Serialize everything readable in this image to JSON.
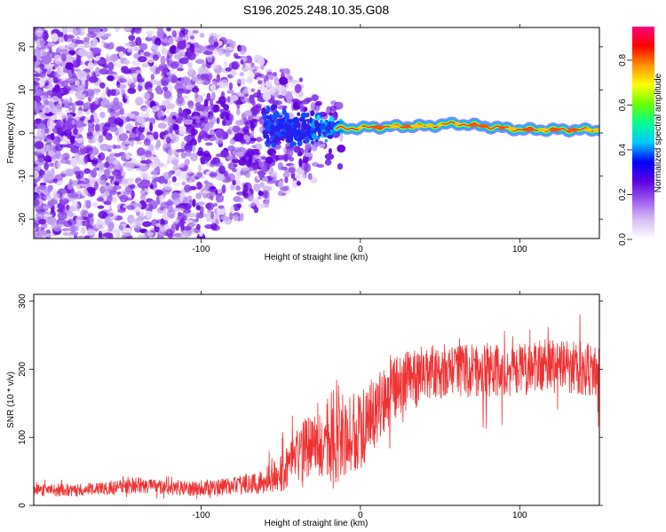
{
  "title": "S196.2025.248.10.35.G08",
  "chart_data": [
    {
      "type": "heatmap",
      "title": "",
      "xlabel": "Height of straight line (km)",
      "ylabel": "Frequency (Hz)",
      "xlim": [
        -205,
        150
      ],
      "ylim": [
        -24.5,
        24.5
      ],
      "xticks": [
        {
          "value": -100,
          "label": "-100"
        },
        {
          "value": 0,
          "label": "0"
        },
        {
          "value": 100,
          "label": "100"
        }
      ],
      "yticks": [
        {
          "value": -20,
          "label": "-20"
        },
        {
          "value": -10,
          "label": "-10"
        },
        {
          "value": 0,
          "label": "0"
        },
        {
          "value": 10,
          "label": "10"
        },
        {
          "value": 20,
          "label": "20"
        }
      ],
      "description_ridge": [
        {
          "x": -15,
          "freq": 1.0,
          "amp": 0.35
        },
        {
          "x": 0,
          "freq": 1.2,
          "amp": 0.7
        },
        {
          "x": 20,
          "freq": 1.5,
          "amp": 0.8
        },
        {
          "x": 40,
          "freq": 1.6,
          "amp": 0.85
        },
        {
          "x": 60,
          "freq": 2.2,
          "amp": 0.9
        },
        {
          "x": 80,
          "freq": 1.5,
          "amp": 0.85
        },
        {
          "x": 100,
          "freq": 0.8,
          "amp": 0.85
        },
        {
          "x": 150,
          "freq": 0.7,
          "amp": 0.9
        }
      ],
      "colorbar": {
        "label": "Normalized spectral amplitude",
        "range": [
          0,
          0.95
        ],
        "ticks": [
          {
            "value": 0.0,
            "label": "0.0"
          },
          {
            "value": 0.2,
            "label": "0.2"
          },
          {
            "value": 0.4,
            "label": "0.4"
          },
          {
            "value": 0.6,
            "label": "0.6"
          },
          {
            "value": 0.8,
            "label": "0.8"
          }
        ],
        "colors": [
          "#ffffff",
          "#d9c0f2",
          "#9f5cf0",
          "#5b00e0",
          "#0000ff",
          "#00c8ff",
          "#00ff90",
          "#6cff00",
          "#ffff00",
          "#ff9000",
          "#ff0000",
          "#ff0080"
        ]
      }
    },
    {
      "type": "line",
      "title": "",
      "xlabel": "Height of straight line (km)",
      "ylabel": "SNR (10 * v/v)",
      "xlim": [
        -205,
        150
      ],
      "ylim": [
        0,
        310
      ],
      "color": "#ee3333",
      "xticks": [
        {
          "value": -100,
          "label": "-100"
        },
        {
          "value": 0,
          "label": "0"
        },
        {
          "value": 100,
          "label": "100"
        }
      ],
      "yticks": [
        {
          "value": 0,
          "label": "0"
        },
        {
          "value": 100,
          "label": "100"
        },
        {
          "value": 200,
          "label": "200"
        },
        {
          "value": 300,
          "label": "300"
        }
      ],
      "series": [
        {
          "name": "SNR",
          "x": [
            -205,
            -180,
            -160,
            -140,
            -120,
            -100,
            -80,
            -60,
            -50,
            -40,
            -30,
            -20,
            -15,
            -10,
            0,
            10,
            20,
            30,
            40,
            60,
            80,
            100,
            120,
            150
          ],
          "mean": [
            22,
            22,
            24,
            30,
            25,
            25,
            30,
            35,
            50,
            70,
            90,
            100,
            110,
            100,
            110,
            140,
            170,
            185,
            195,
            200,
            195,
            200,
            205,
            200
          ],
          "spread": [
            8,
            10,
            10,
            12,
            10,
            12,
            14,
            18,
            30,
            40,
            50,
            60,
            80,
            60,
            60,
            55,
            45,
            45,
            40,
            40,
            40,
            40,
            40,
            40
          ]
        }
      ]
    }
  ]
}
